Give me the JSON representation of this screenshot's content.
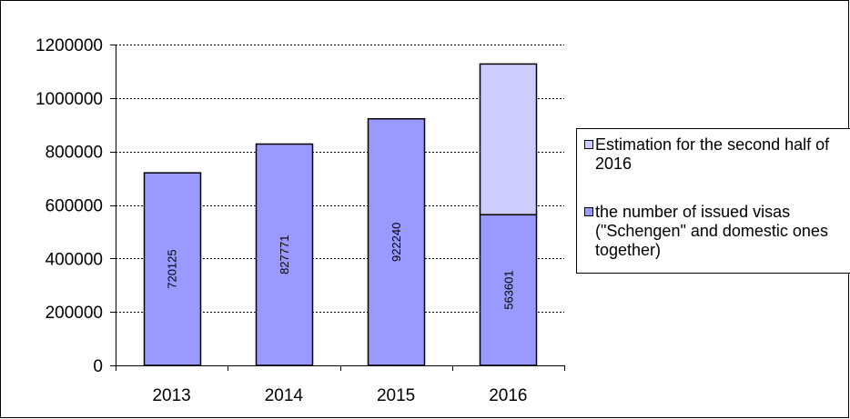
{
  "chart_data": {
    "type": "bar",
    "stacked": true,
    "categories": [
      "2013",
      "2014",
      "2015",
      "2016"
    ],
    "series": [
      {
        "name": "the number of issued visas (\"Schengen\" and domestic ones together)",
        "values": [
          720125,
          827771,
          922240,
          563601
        ],
        "color": "#9999ff",
        "labels": [
          "720125",
          "827771",
          "922240",
          "563601"
        ]
      },
      {
        "name": "Estimation for the second half of 2016",
        "values": [
          0,
          0,
          0,
          563601
        ],
        "color": "#ccccff"
      }
    ],
    "yticks": [
      "0",
      "200000",
      "400000",
      "600000",
      "800000",
      "1000000",
      "1200000"
    ],
    "ylim": [
      0,
      1200000
    ],
    "grid": true,
    "legend": "right"
  }
}
